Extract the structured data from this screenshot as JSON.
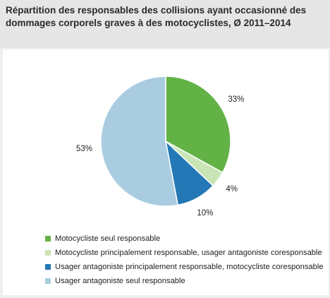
{
  "title": "Répartition des responsables des collisions ayant occasionné des dommages corporels graves à des motocyclistes, Ø 2011–2014",
  "chart_data": {
    "type": "pie",
    "title": "Répartition des responsables des collisions ayant occasionné des dommages corporels graves à des motocyclistes, Ø 2011–2014",
    "slices": [
      {
        "label": "Motocycliste seul responsable",
        "value": 33,
        "value_label": "33%",
        "color": "#62b246"
      },
      {
        "label": "Motocycliste principalement responsable, usager antagoniste coresponsable",
        "value": 4,
        "value_label": "4%",
        "color": "#c9e5b5"
      },
      {
        "label": "Usager antagoniste principalement responsable, motocycliste coresponsable",
        "value": 10,
        "value_label": "10%",
        "color": "#2478b5"
      },
      {
        "label": "Usager antagoniste seul responsable",
        "value": 53,
        "value_label": "53%",
        "color": "#a9cce0"
      }
    ],
    "legend_position": "bottom-left"
  }
}
